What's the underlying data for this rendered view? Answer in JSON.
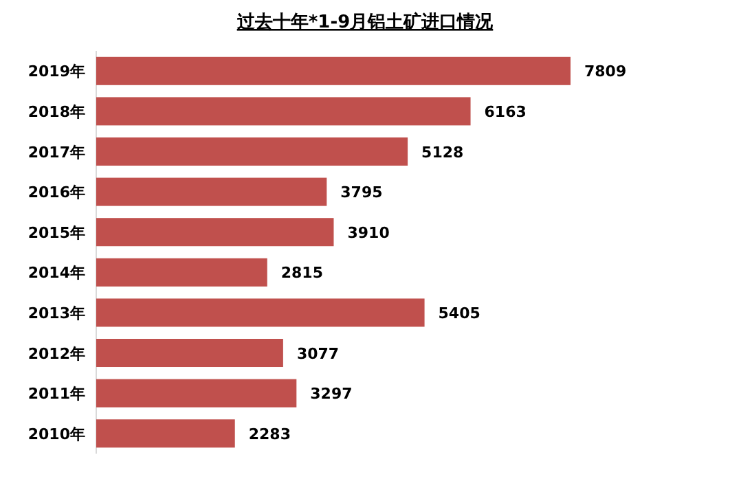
{
  "chart_data": {
    "type": "bar",
    "orientation": "horizontal",
    "title": "过去十年*1-9月铝土矿进口情况",
    "categories": [
      "2019年",
      "2018年",
      "2017年",
      "2016年",
      "2015年",
      "2014年",
      "2013年",
      "2012年",
      "2011年",
      "2010年"
    ],
    "values": [
      7809,
      6163,
      5128,
      3795,
      3910,
      2815,
      5405,
      3077,
      3297,
      2283
    ],
    "color": "#c0504d",
    "data_labels": true
  }
}
